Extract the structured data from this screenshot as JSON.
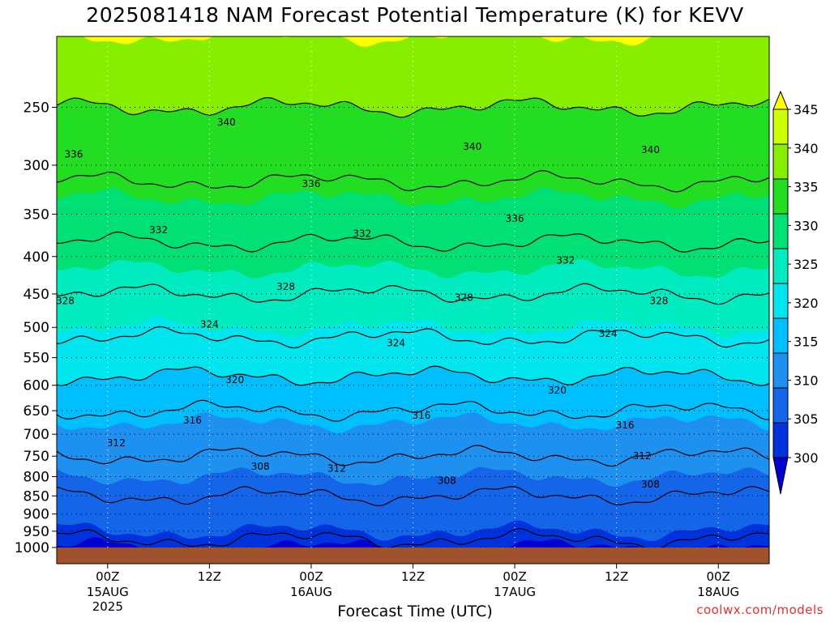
{
  "title": "2025081418 NAM Forecast Potential Temperature (K) for KEVV",
  "credit": "coolwx.com/models",
  "chart_data": {
    "type": "heatmap",
    "title": "2025081418 NAM Forecast Potential Temperature (K) for KEVV",
    "xlabel": "Forecast Time (UTC)",
    "ylabel": "",
    "y_axis": "pressure (hPa), reversed, log-scale",
    "y_ticks": [
      250,
      300,
      350,
      400,
      450,
      500,
      550,
      600,
      650,
      700,
      750,
      800,
      850,
      900,
      950,
      1000
    ],
    "x_ticks": [
      {
        "label": "00Z",
        "sub1": "15AUG",
        "sub2": "2025",
        "t": 6
      },
      {
        "label": "12Z",
        "sub1": "",
        "sub2": "",
        "t": 18
      },
      {
        "label": "00Z",
        "sub1": "16AUG",
        "sub2": "",
        "t": 30
      },
      {
        "label": "12Z",
        "sub1": "",
        "sub2": "",
        "t": 42
      },
      {
        "label": "00Z",
        "sub1": "17AUG",
        "sub2": "",
        "t": 54
      },
      {
        "label": "12Z",
        "sub1": "",
        "sub2": "",
        "t": 66
      },
      {
        "label": "00Z",
        "sub1": "18AUG",
        "sub2": "",
        "t": 78
      }
    ],
    "xlim": [
      0,
      84
    ],
    "ylim": [
      1000,
      200
    ],
    "grid": true,
    "colorbar": {
      "levels": [
        300,
        305,
        310,
        315,
        320,
        325,
        330,
        335,
        340,
        345
      ],
      "colors": [
        "#0000d0",
        "#0033dd",
        "#1565e8",
        "#1e90f0",
        "#00bfff",
        "#00e5ee",
        "#00ecc0",
        "#00e075",
        "#22dd22",
        "#88ee00",
        "#ccff00",
        "#ffff00"
      ],
      "labels": [
        "300",
        "305",
        "310",
        "315",
        "320",
        "325",
        "330",
        "335",
        "340",
        "345"
      ]
    },
    "contour_levels": [
      304,
      308,
      312,
      316,
      320,
      324,
      328,
      332,
      336,
      340
    ],
    "sample_profile": [
      {
        "p": 1000,
        "theta": 303
      },
      {
        "p": 950,
        "theta": 305
      },
      {
        "p": 900,
        "theta": 307
      },
      {
        "p": 850,
        "theta": 308
      },
      {
        "p": 800,
        "theta": 310
      },
      {
        "p": 750,
        "theta": 312
      },
      {
        "p": 700,
        "theta": 314
      },
      {
        "p": 650,
        "theta": 316
      },
      {
        "p": 600,
        "theta": 319
      },
      {
        "p": 550,
        "theta": 322
      },
      {
        "p": 500,
        "theta": 325
      },
      {
        "p": 450,
        "theta": 328
      },
      {
        "p": 400,
        "theta": 331
      },
      {
        "p": 350,
        "theta": 334
      },
      {
        "p": 300,
        "theta": 337
      },
      {
        "p": 250,
        "theta": 340
      },
      {
        "p": 200,
        "theta": 344
      }
    ],
    "contour_labels": [
      {
        "text": "340",
        "t": 20,
        "p": 262
      },
      {
        "text": "336",
        "t": 2,
        "p": 290
      },
      {
        "text": "340",
        "t": 49,
        "p": 283
      },
      {
        "text": "340",
        "t": 70,
        "p": 286
      },
      {
        "text": "336",
        "t": 30,
        "p": 318
      },
      {
        "text": "336",
        "t": 54,
        "p": 355
      },
      {
        "text": "332",
        "t": 12,
        "p": 368
      },
      {
        "text": "332",
        "t": 36,
        "p": 372
      },
      {
        "text": "332",
        "t": 60,
        "p": 405
      },
      {
        "text": "328",
        "t": 27,
        "p": 440
      },
      {
        "text": "328",
        "t": 1,
        "p": 460
      },
      {
        "text": "328",
        "t": 48,
        "p": 455
      },
      {
        "text": "328",
        "t": 71,
        "p": 460
      },
      {
        "text": "324",
        "t": 18,
        "p": 495
      },
      {
        "text": "324",
        "t": 40,
        "p": 525
      },
      {
        "text": "324",
        "t": 65,
        "p": 510
      },
      {
        "text": "320",
        "t": 21,
        "p": 590
      },
      {
        "text": "320",
        "t": 59,
        "p": 610
      },
      {
        "text": "316",
        "t": 16,
        "p": 670
      },
      {
        "text": "316",
        "t": 43,
        "p": 660
      },
      {
        "text": "316",
        "t": 67,
        "p": 680
      },
      {
        "text": "312",
        "t": 7,
        "p": 720
      },
      {
        "text": "312",
        "t": 33,
        "p": 780
      },
      {
        "text": "312",
        "t": 69,
        "p": 750
      },
      {
        "text": "308",
        "t": 24,
        "p": 775
      },
      {
        "text": "308",
        "t": 46,
        "p": 810
      },
      {
        "text": "308",
        "t": 70,
        "p": 820
      }
    ]
  }
}
